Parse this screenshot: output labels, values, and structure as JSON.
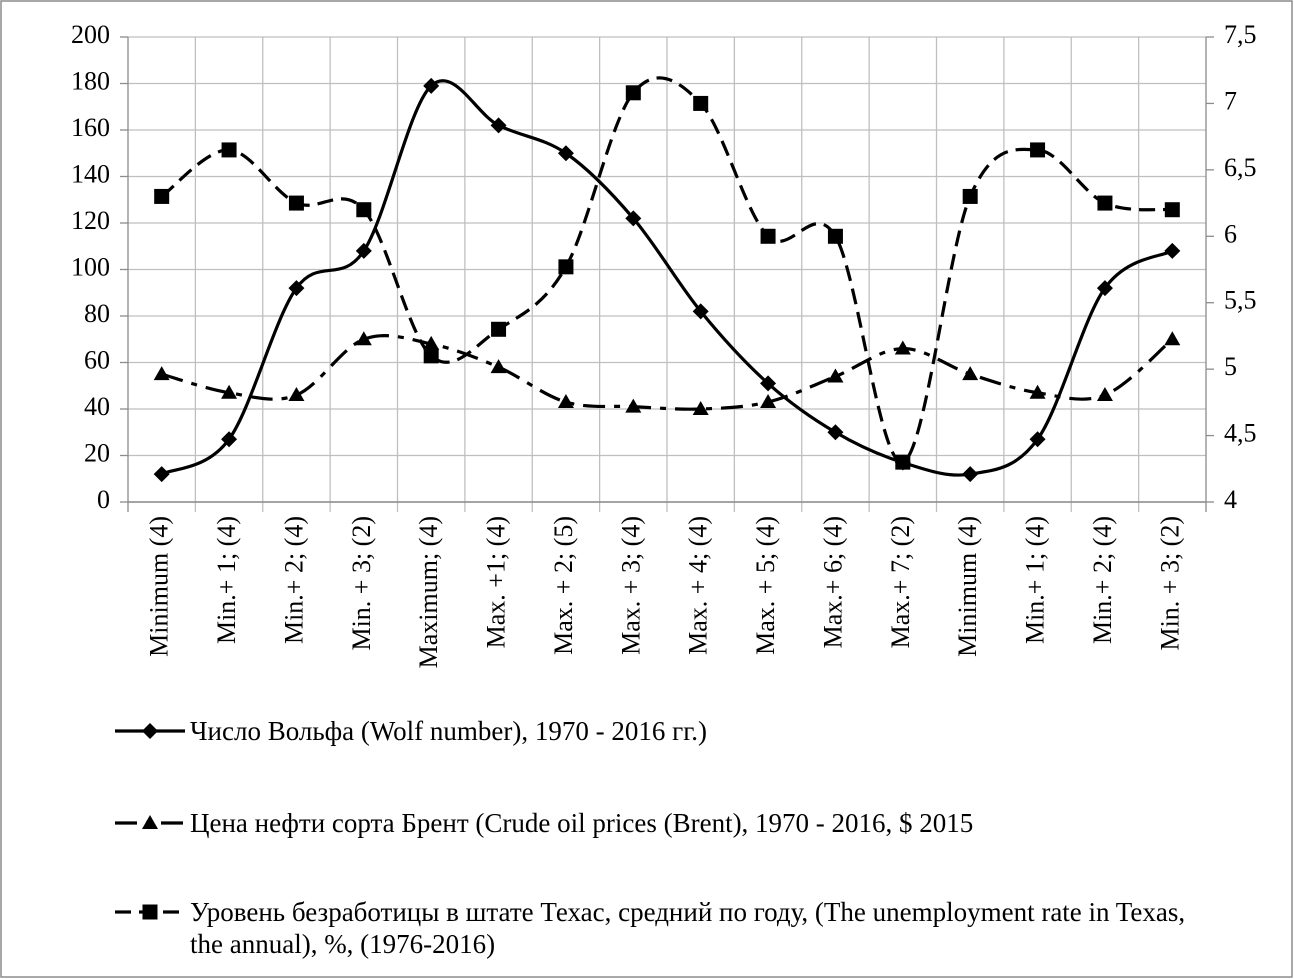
{
  "chart_data": {
    "type": "line",
    "categories": [
      "Minimum (4)",
      "Min.+ 1; (4)",
      "Min.+ 2; (4)",
      "Min. + 3; (2)",
      "Maximum; (4)",
      "Max. +1; (4)",
      "Max. + 2; (5)",
      "Max. + 3; (4)",
      "Max. + 4; (4)",
      "Max. + 5; (4)",
      "Max.+ 6; (4)",
      "Max.+ 7; (2)",
      "Minimum (4)",
      "Min.+ 1; (4)",
      "Min.+ 2; (4)",
      "Min. + 3; (2)"
    ],
    "series": [
      {
        "name": "Число Вольфа (Wolf number), 1970 - 2016 гг.)",
        "color": "#000000",
        "marker": "diamond",
        "dash": "solid",
        "values": [
          12,
          27,
          92,
          108,
          179,
          162,
          150,
          122,
          82,
          51,
          30,
          17,
          12,
          27,
          92,
          108
        ]
      },
      {
        "name": "Цена нефти сорта Брент (Crude oil prices (Brent), 1970 - 2016, $ 2015",
        "color": "#000000",
        "marker": "triangle",
        "dash": "dashdot",
        "values": [
          55,
          47,
          46,
          70,
          68,
          58,
          43,
          41,
          40,
          43,
          54,
          66,
          55,
          47,
          46,
          70
        ]
      },
      {
        "name": "Уровень безработицы в штате Техас, средний по году, (The unemployment rate in Texas, the annual), %, (1976-2016)",
        "color": "#000000",
        "marker": "square",
        "dash": "dashed",
        "axis": "y2",
        "values": [
          6.3,
          6.65,
          6.25,
          6.2,
          5.1,
          5.3,
          5.77,
          7.08,
          7.0,
          6.0,
          6.0,
          4.3,
          6.3,
          6.65,
          6.25,
          6.2
        ]
      }
    ],
    "ylim": [
      0,
      200
    ],
    "yticks": [
      0,
      20,
      40,
      60,
      80,
      100,
      120,
      140,
      160,
      180,
      200
    ],
    "y2lim": [
      4,
      7.5
    ],
    "y2ticks": [
      4,
      {
        "value": 4.5,
        "label": "4,5"
      },
      5,
      {
        "value": 5.5,
        "label": "5,5"
      },
      6,
      {
        "value": 6.5,
        "label": "6,5"
      },
      7,
      {
        "value": 7.5,
        "label": "7,5"
      }
    ],
    "grid": true,
    "legend": "bottom"
  }
}
